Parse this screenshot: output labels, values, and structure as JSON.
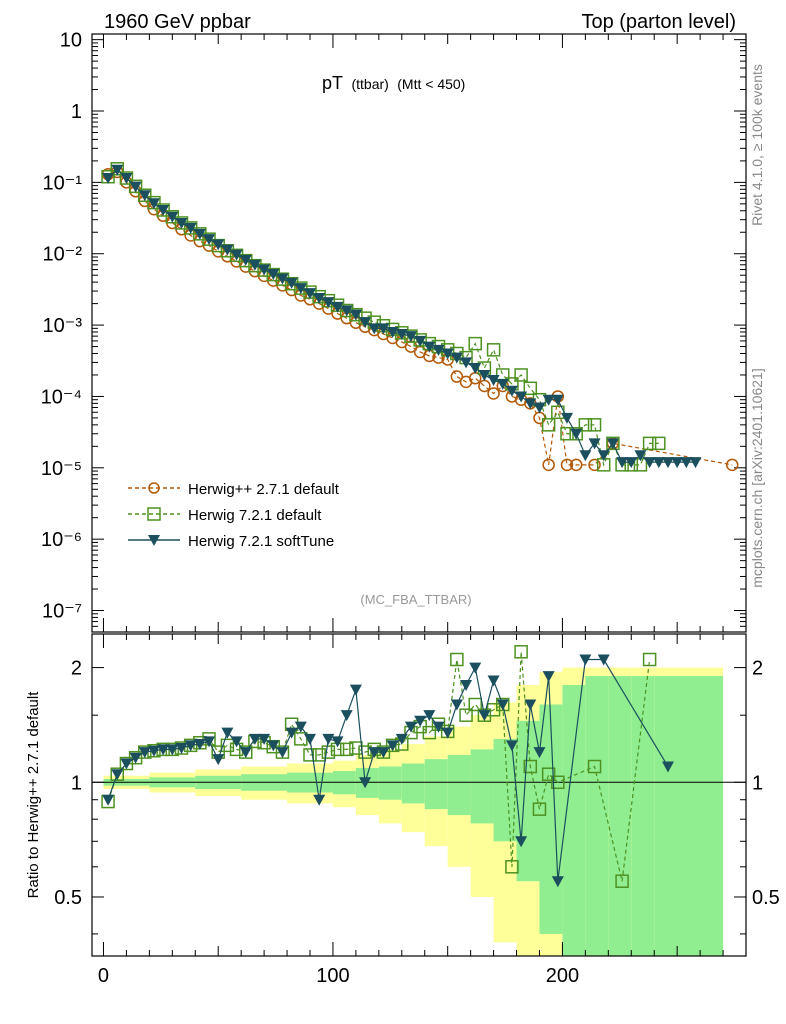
{
  "header": {
    "left": "1960 GeV ppbar",
    "right": "Top (parton level)"
  },
  "plot_title": {
    "main": "pT",
    "sub": "(ttbar)",
    "cut": "(Mtt < 450)"
  },
  "side_labels": {
    "rivet": "Rivet 4.1.0, ≥ 100k events",
    "mcplots": "mcplots.cern.ch [arXiv:2401.10621]"
  },
  "analysis_id": "(MC_FBA_TTBAR)",
  "colors": {
    "herwigpp": "#b35806",
    "herwig7": "#4d9221",
    "softtune": "#1b4f5e",
    "band_green": "#90ee90",
    "band_yellow": "#ffff99"
  },
  "chart_data": [
    {
      "type": "scatter",
      "title": "pT (ttbar) (Mtt < 450)",
      "xlabel": "",
      "ylabel": "",
      "xlim": [
        -5,
        280
      ],
      "ylim": [
        5e-08,
        12
      ],
      "yscale": "log",
      "ytick_labels": [
        "10",
        "1",
        "10⁻¹",
        "10⁻²",
        "10⁻³",
        "10⁻⁴",
        "10⁻⁵",
        "10⁻⁶",
        "10⁻⁷"
      ],
      "ytick_values": [
        10,
        1,
        0.1,
        0.01,
        0.001,
        0.0001,
        1e-05,
        1e-06,
        1e-07
      ],
      "legend_position": "bottom-left",
      "series": [
        {
          "name": "Herwig++ 2.7.1 default",
          "marker": "open-circle",
          "x": [
            2,
            6,
            10,
            14,
            18,
            22,
            26,
            30,
            34,
            38,
            42,
            46,
            50,
            54,
            58,
            62,
            66,
            70,
            74,
            78,
            82,
            86,
            90,
            94,
            98,
            102,
            106,
            110,
            114,
            118,
            122,
            126,
            130,
            134,
            138,
            142,
            146,
            150,
            154,
            158,
            162,
            166,
            170,
            174,
            178,
            182,
            186,
            190,
            194,
            198,
            202,
            206,
            214,
            222,
            274
          ],
          "y": [
            0.13,
            0.14,
            0.1,
            0.075,
            0.055,
            0.042,
            0.034,
            0.027,
            0.022,
            0.018,
            0.015,
            0.013,
            0.0108,
            0.0092,
            0.0078,
            0.0066,
            0.0057,
            0.0049,
            0.0042,
            0.0036,
            0.0031,
            0.0026,
            0.0023,
            0.002,
            0.0017,
            0.00145,
            0.00125,
            0.00108,
            0.00095,
            0.00085,
            0.00075,
            0.00066,
            0.00058,
            0.0005,
            0.00042,
            0.00037,
            0.00035,
            0.00033,
            0.00019,
            0.00016,
            0.00018,
            0.00014,
            0.00011,
            0.00014,
            0.0001,
            9e-05,
            8e-05,
            5e-05,
            1.1e-05,
            0.0001,
            1.1e-05,
            1.1e-05,
            1.1e-05,
            2.2e-05,
            1.1e-05
          ]
        },
        {
          "name": "Herwig 7.2.1 default",
          "marker": "open-square",
          "x": [
            2,
            6,
            10,
            14,
            18,
            22,
            26,
            30,
            34,
            38,
            42,
            46,
            50,
            54,
            58,
            62,
            66,
            70,
            74,
            78,
            82,
            86,
            90,
            94,
            98,
            102,
            106,
            110,
            114,
            118,
            122,
            126,
            130,
            134,
            138,
            142,
            146,
            150,
            154,
            158,
            162,
            166,
            170,
            174,
            178,
            182,
            186,
            190,
            194,
            198,
            202,
            206,
            210,
            214,
            218,
            222,
            226,
            230,
            234,
            238,
            242
          ],
          "y": [
            0.12,
            0.155,
            0.115,
            0.088,
            0.066,
            0.052,
            0.041,
            0.033,
            0.027,
            0.023,
            0.019,
            0.016,
            0.013,
            0.011,
            0.0095,
            0.008,
            0.0068,
            0.0059,
            0.0051,
            0.0044,
            0.0038,
            0.0033,
            0.0029,
            0.0025,
            0.0022,
            0.0019,
            0.0016,
            0.0014,
            0.00125,
            0.0011,
            0.00098,
            0.00087,
            0.00078,
            0.0007,
            0.00062,
            0.00055,
            0.0005,
            0.00045,
            0.0004,
            0.00035,
            0.00055,
            0.00025,
            0.00045,
            0.0002,
            0.00015,
            0.0002,
            0.00013,
            9e-05,
            4e-05,
            6e-05,
            3e-05,
            3e-05,
            4e-05,
            4e-05,
            1.1e-05,
            2.2e-05,
            1.1e-05,
            1.1e-05,
            1.1e-05,
            2.2e-05,
            2.2e-05
          ]
        },
        {
          "name": "Herwig 7.2.1 softTune",
          "marker": "filled-down-triangle",
          "x": [
            2,
            6,
            10,
            14,
            18,
            22,
            26,
            30,
            34,
            38,
            42,
            46,
            50,
            54,
            58,
            62,
            66,
            70,
            74,
            78,
            82,
            86,
            90,
            94,
            98,
            102,
            106,
            110,
            114,
            118,
            122,
            126,
            130,
            134,
            138,
            142,
            146,
            150,
            154,
            158,
            162,
            166,
            170,
            174,
            178,
            182,
            186,
            190,
            194,
            198,
            202,
            206,
            210,
            214,
            218,
            222,
            226,
            230,
            234,
            238,
            242,
            246,
            250,
            254,
            258
          ],
          "y": [
            0.115,
            0.15,
            0.115,
            0.087,
            0.066,
            0.051,
            0.041,
            0.033,
            0.027,
            0.023,
            0.019,
            0.016,
            0.0135,
            0.0114,
            0.0097,
            0.0082,
            0.007,
            0.006,
            0.0052,
            0.0045,
            0.0039,
            0.0033,
            0.0028,
            0.0024,
            0.0021,
            0.0018,
            0.0016,
            0.0014,
            0.0011,
            0.0009,
            0.0009,
            0.0008,
            0.00075,
            0.0007,
            0.0006,
            0.0005,
            0.00045,
            0.0004,
            0.00035,
            0.0003,
            0.00025,
            0.0002,
            0.00017,
            0.00015,
            0.00012,
            0.0001,
            8e-05,
            7e-05,
            9e-05,
            9e-05,
            5e-05,
            3e-05,
            1.5e-05,
            2.2e-05,
            1.5e-05,
            2.2e-05,
            1.2e-05,
            1.2e-05,
            1.5e-05,
            1.2e-05,
            1.2e-05,
            1.2e-05,
            1.2e-05,
            1.2e-05,
            1.2e-05
          ]
        }
      ]
    },
    {
      "type": "scatter",
      "title": "",
      "xlabel": "",
      "ylabel": "Ratio to Herwig++ 2.7.1 default",
      "xlim": [
        -5,
        280
      ],
      "ylim": [
        0.35,
        2.45
      ],
      "xtick_labels": [
        "0",
        "100",
        "200"
      ],
      "xtick_values": [
        0,
        100,
        200
      ],
      "ytick_labels": [
        "0.5",
        "1",
        "2"
      ],
      "ytick_values": [
        0.5,
        1,
        2
      ],
      "bands": {
        "x": [
          0,
          20,
          40,
          60,
          80,
          100,
          110,
          120,
          130,
          140,
          150,
          160,
          170,
          180,
          190,
          200,
          210,
          220,
          230,
          240,
          270
        ],
        "green_half_width": [
          0.02,
          0.03,
          0.04,
          0.05,
          0.06,
          0.07,
          0.09,
          0.1,
          0.12,
          0.15,
          0.18,
          0.22,
          0.3,
          0.45,
          0.6,
          0.8,
          0.9,
          0.9,
          0.9,
          0.9,
          0.9
        ],
        "yellow_half_width": [
          0.04,
          0.06,
          0.08,
          0.1,
          0.12,
          0.14,
          0.18,
          0.22,
          0.26,
          0.32,
          0.4,
          0.5,
          0.62,
          0.8,
          0.95,
          1.0,
          1.0,
          1.0,
          1.0,
          1.0,
          1.0
        ]
      },
      "series": [
        {
          "name": "Herwig 7.2.1 default",
          "marker": "open-square",
          "x": [
            2,
            6,
            10,
            14,
            18,
            22,
            26,
            30,
            34,
            38,
            42,
            46,
            50,
            54,
            58,
            62,
            66,
            70,
            74,
            78,
            82,
            86,
            90,
            94,
            98,
            102,
            106,
            110,
            114,
            118,
            122,
            126,
            130,
            134,
            138,
            142,
            146,
            150,
            154,
            158,
            162,
            166,
            170,
            174,
            178,
            182,
            186,
            190,
            194,
            198,
            214,
            226,
            238
          ],
          "y": [
            0.89,
            1.05,
            1.12,
            1.16,
            1.2,
            1.21,
            1.22,
            1.22,
            1.23,
            1.25,
            1.27,
            1.3,
            1.2,
            1.25,
            1.22,
            1.2,
            1.28,
            1.27,
            1.24,
            1.2,
            1.42,
            1.3,
            1.18,
            1.18,
            1.2,
            1.22,
            1.22,
            1.23,
            1.2,
            1.22,
            1.2,
            1.25,
            1.26,
            1.35,
            1.4,
            1.35,
            1.42,
            1.36,
            2.1,
            1.5,
            1.6,
            1.5,
            1.55,
            1.6,
            0.6,
            2.2,
            1.1,
            0.85,
            1.05,
            1.0,
            1.1,
            0.55,
            2.1
          ]
        },
        {
          "name": "Herwig 7.2.1 softTune",
          "marker": "filled-down-triangle",
          "x": [
            2,
            6,
            10,
            14,
            18,
            22,
            26,
            30,
            34,
            38,
            42,
            46,
            50,
            54,
            58,
            62,
            66,
            70,
            74,
            78,
            82,
            86,
            90,
            94,
            98,
            102,
            106,
            110,
            114,
            118,
            122,
            126,
            130,
            134,
            138,
            142,
            146,
            150,
            154,
            158,
            162,
            166,
            170,
            174,
            178,
            182,
            186,
            190,
            194,
            198,
            210,
            218,
            246
          ],
          "y": [
            0.9,
            1.05,
            1.12,
            1.16,
            1.2,
            1.21,
            1.22,
            1.22,
            1.23,
            1.25,
            1.26,
            1.28,
            1.15,
            1.35,
            1.28,
            1.2,
            1.3,
            1.3,
            1.25,
            1.2,
            1.35,
            1.4,
            1.3,
            0.9,
            1.3,
            1.28,
            1.5,
            1.75,
            1.0,
            1.2,
            1.2,
            1.25,
            1.3,
            1.4,
            1.45,
            1.5,
            1.4,
            1.35,
            1.6,
            1.8,
            2.0,
            1.5,
            1.85,
            1.6,
            1.25,
            0.7,
            1.6,
            1.2,
            1.9,
            0.55,
            2.1,
            2.1,
            1.1
          ]
        }
      ]
    }
  ]
}
